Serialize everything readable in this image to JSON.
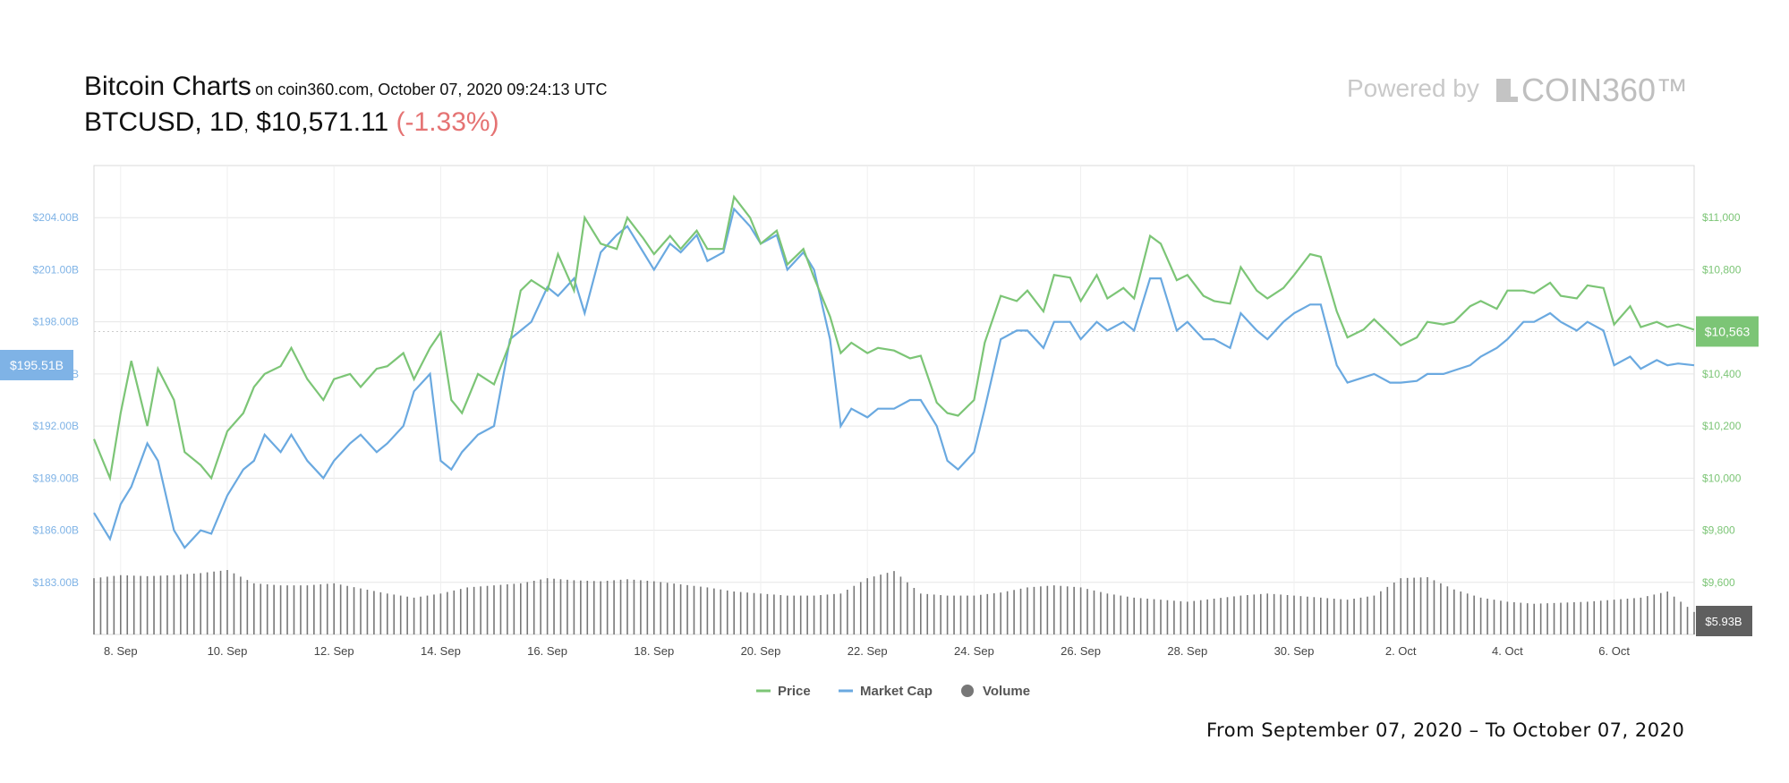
{
  "header": {
    "title": "Bitcoin Charts",
    "subtitle": "on coin360.com, October 07, 2020 09:24:13 UTC",
    "pair": "BTCUSD",
    "interval": "1D",
    "price": "$10,571.11",
    "change": "(-1.33%)"
  },
  "branding": {
    "powered_by": "Powered by",
    "brand": "COIN360™"
  },
  "footer": {
    "range": "From September 07, 2020 – To October 07, 2020"
  },
  "colors": {
    "price": "#7cc576",
    "market_cap": "#6aa9e0",
    "volume": "#777777",
    "grid": "#e6e6e6",
    "cursor_dark": "#5f5f5f"
  },
  "chart_data": {
    "type": "line",
    "x_tick_labels": [
      "8. Sep",
      "10. Sep",
      "12. Sep",
      "14. Sep",
      "16. Sep",
      "18. Sep",
      "20. Sep",
      "22. Sep",
      "24. Sep",
      "26. Sep",
      "28. Sep",
      "30. Sep",
      "2. Oct",
      "4. Oct",
      "6. Oct"
    ],
    "x_range_days": [
      7.5,
      37.5
    ],
    "left_axis": {
      "label_ticks": [
        "$183.00B",
        "$186.00B",
        "$189.00B",
        "$192.00B",
        "$195.00B",
        "$198.00B",
        "$201.00B",
        "$204.00B"
      ],
      "values": [
        183,
        186,
        189,
        192,
        195,
        198,
        201,
        204
      ],
      "range": [
        180,
        207
      ]
    },
    "right_axis": {
      "label_ticks": [
        "$9,600",
        "$9,800",
        "$10,000",
        "$10,200",
        "$10,400",
        "$10,600",
        "$10,800",
        "$11,000"
      ],
      "values": [
        9600,
        9800,
        10000,
        10200,
        10400,
        10600,
        10800,
        11000
      ],
      "range": [
        9400,
        11200
      ]
    },
    "left_marker": "$195.51B",
    "right_marker": "$10,563",
    "volume_marker": "$5.93B",
    "legend": [
      "Price",
      "Market Cap",
      "Volume"
    ],
    "legend_position": "bottom-center",
    "grid": true,
    "price_series": {
      "name": "Price",
      "x": [
        7.5,
        7.8,
        8.0,
        8.2,
        8.5,
        8.7,
        9.0,
        9.2,
        9.5,
        9.7,
        10.0,
        10.3,
        10.5,
        10.7,
        11.0,
        11.2,
        11.5,
        11.8,
        12.0,
        12.3,
        12.5,
        12.8,
        13.0,
        13.3,
        13.5,
        13.8,
        14.0,
        14.2,
        14.4,
        14.7,
        15.0,
        15.3,
        15.5,
        15.7,
        16.0,
        16.2,
        16.5,
        16.7,
        17.0,
        17.3,
        17.5,
        17.8,
        18.0,
        18.3,
        18.5,
        18.8,
        19.0,
        19.3,
        19.5,
        19.8,
        20.0,
        20.3,
        20.5,
        20.8,
        21.0,
        21.3,
        21.5,
        21.7,
        22.0,
        22.2,
        22.5,
        22.8,
        23.0,
        23.3,
        23.5,
        23.7,
        24.0,
        24.2,
        24.5,
        24.8,
        25.0,
        25.3,
        25.5,
        25.8,
        26.0,
        26.3,
        26.5,
        26.8,
        27.0,
        27.3,
        27.5,
        27.8,
        28.0,
        28.3,
        28.5,
        28.8,
        29.0,
        29.3,
        29.5,
        29.8,
        30.0,
        30.3,
        30.5,
        30.8,
        31.0,
        31.3,
        31.5,
        31.8,
        32.0,
        32.3,
        32.5,
        32.8,
        33.0,
        33.3,
        33.5,
        33.8,
        34.0,
        34.3,
        34.5,
        34.8,
        35.0,
        35.3,
        35.5,
        35.8,
        36.0,
        36.3,
        36.5,
        36.8,
        37.0,
        37.2,
        37.5
      ],
      "y": [
        10150,
        10000,
        10250,
        10450,
        10200,
        10420,
        10300,
        10100,
        10050,
        10000,
        10180,
        10250,
        10350,
        10400,
        10430,
        10500,
        10380,
        10300,
        10380,
        10400,
        10350,
        10420,
        10430,
        10480,
        10380,
        10500,
        10560,
        10300,
        10250,
        10400,
        10360,
        10520,
        10720,
        10760,
        10720,
        10860,
        10720,
        11000,
        10900,
        10880,
        11000,
        10920,
        10860,
        10930,
        10880,
        10950,
        10880,
        10880,
        11080,
        11000,
        10900,
        10950,
        10820,
        10880,
        10770,
        10620,
        10480,
        10520,
        10480,
        10500,
        10490,
        10460,
        10470,
        10290,
        10250,
        10240,
        10300,
        10520,
        10700,
        10680,
        10720,
        10640,
        10780,
        10770,
        10680,
        10780,
        10690,
        10730,
        10690,
        10930,
        10900,
        10760,
        10780,
        10700,
        10680,
        10670,
        10810,
        10720,
        10690,
        10730,
        10780,
        10860,
        10850,
        10640,
        10540,
        10570,
        10610,
        10550,
        10510,
        10540,
        10600,
        10590,
        10600,
        10660,
        10680,
        10650,
        10720,
        10720,
        10710,
        10750,
        10700,
        10690,
        10740,
        10730,
        10590,
        10660,
        10580,
        10600,
        10580,
        10590,
        10570
      ],
      "x_last_day": 37.5
    },
    "market_cap_series": {
      "name": "Market Cap",
      "x": [
        7.5,
        7.8,
        8.0,
        8.2,
        8.5,
        8.7,
        9.0,
        9.2,
        9.5,
        9.7,
        10.0,
        10.3,
        10.5,
        10.7,
        11.0,
        11.2,
        11.5,
        11.8,
        12.0,
        12.3,
        12.5,
        12.8,
        13.0,
        13.3,
        13.5,
        13.8,
        14.0,
        14.2,
        14.4,
        14.7,
        15.0,
        15.3,
        15.5,
        15.7,
        16.0,
        16.2,
        16.5,
        16.7,
        17.0,
        17.3,
        17.5,
        17.8,
        18.0,
        18.3,
        18.5,
        18.8,
        19.0,
        19.3,
        19.5,
        19.8,
        20.0,
        20.3,
        20.5,
        20.8,
        21.0,
        21.3,
        21.5,
        21.7,
        22.0,
        22.2,
        22.5,
        22.8,
        23.0,
        23.3,
        23.5,
        23.7,
        24.0,
        24.2,
        24.5,
        24.8,
        25.0,
        25.3,
        25.5,
        25.8,
        26.0,
        26.3,
        26.5,
        26.8,
        27.0,
        27.3,
        27.5,
        27.8,
        28.0,
        28.3,
        28.5,
        28.8,
        29.0,
        29.3,
        29.5,
        29.8,
        30.0,
        30.3,
        30.5,
        30.8,
        31.0,
        31.3,
        31.5,
        31.8,
        32.0,
        32.3,
        32.5,
        32.8,
        33.0,
        33.3,
        33.5,
        33.8,
        34.0,
        34.3,
        34.5,
        34.8,
        35.0,
        35.3,
        35.5,
        35.8,
        36.0,
        36.3,
        36.5,
        36.8,
        37.0,
        37.2,
        37.5
      ],
      "y": [
        187.0,
        185.5,
        187.5,
        188.5,
        191.0,
        190.0,
        186.0,
        185.0,
        186.0,
        185.8,
        188.0,
        189.5,
        190.0,
        191.5,
        190.5,
        191.5,
        190.0,
        189.0,
        190.0,
        191.0,
        191.5,
        190.5,
        191.0,
        192.0,
        194.0,
        195.0,
        190.0,
        189.5,
        190.5,
        191.5,
        192.0,
        197.0,
        197.5,
        198.0,
        200.0,
        199.5,
        200.5,
        198.5,
        202.0,
        203.0,
        203.5,
        202.0,
        201.0,
        202.5,
        202.0,
        203.0,
        201.5,
        202.0,
        204.5,
        203.5,
        202.5,
        203.0,
        201.0,
        202.0,
        201.0,
        197.0,
        192.0,
        193.0,
        192.5,
        193.0,
        193.0,
        193.5,
        193.5,
        192.0,
        190.0,
        189.5,
        190.5,
        193.0,
        197.0,
        197.5,
        197.5,
        196.5,
        198.0,
        198.0,
        197.0,
        198.0,
        197.5,
        198.0,
        197.5,
        200.5,
        200.5,
        197.5,
        198.0,
        197.0,
        197.0,
        196.5,
        198.5,
        197.5,
        197.0,
        198.0,
        198.5,
        199.0,
        199.0,
        195.5,
        194.5,
        194.8,
        195.0,
        194.5,
        194.5,
        194.6,
        195.0,
        195.0,
        195.2,
        195.5,
        196.0,
        196.5,
        197.0,
        198.0,
        198.0,
        198.5,
        198.0,
        197.5,
        198.0,
        197.5,
        195.5,
        196.0,
        195.3,
        195.8,
        195.5,
        195.6,
        195.5
      ]
    },
    "volume_series": {
      "name": "Volume",
      "note_units": "relative",
      "x": [
        7.5,
        8.0,
        8.5,
        9.0,
        9.5,
        10.0,
        10.5,
        11.0,
        11.5,
        12.0,
        12.5,
        13.0,
        13.5,
        14.0,
        14.5,
        15.0,
        15.5,
        16.0,
        16.5,
        17.0,
        17.5,
        18.0,
        18.5,
        19.0,
        19.5,
        20.0,
        20.5,
        21.0,
        21.5,
        22.0,
        22.5,
        23.0,
        23.5,
        24.0,
        24.5,
        25.0,
        25.5,
        26.0,
        26.5,
        27.0,
        27.5,
        28.0,
        28.5,
        29.0,
        29.5,
        30.0,
        30.5,
        31.0,
        31.5,
        32.0,
        32.5,
        33.0,
        33.5,
        34.0,
        34.5,
        35.0,
        35.5,
        36.0,
        36.5,
        37.0,
        37.5
      ],
      "y": [
        55,
        58,
        57,
        58,
        60,
        63,
        50,
        48,
        48,
        50,
        45,
        40,
        36,
        40,
        46,
        48,
        50,
        55,
        53,
        52,
        54,
        52,
        49,
        46,
        42,
        40,
        38,
        38,
        40,
        55,
        62,
        40,
        38,
        38,
        41,
        46,
        48,
        46,
        40,
        36,
        34,
        32,
        35,
        38,
        40,
        38,
        36,
        34,
        38,
        55,
        56,
        44,
        36,
        32,
        30,
        31,
        32,
        34,
        36,
        42,
        22
      ]
    }
  }
}
